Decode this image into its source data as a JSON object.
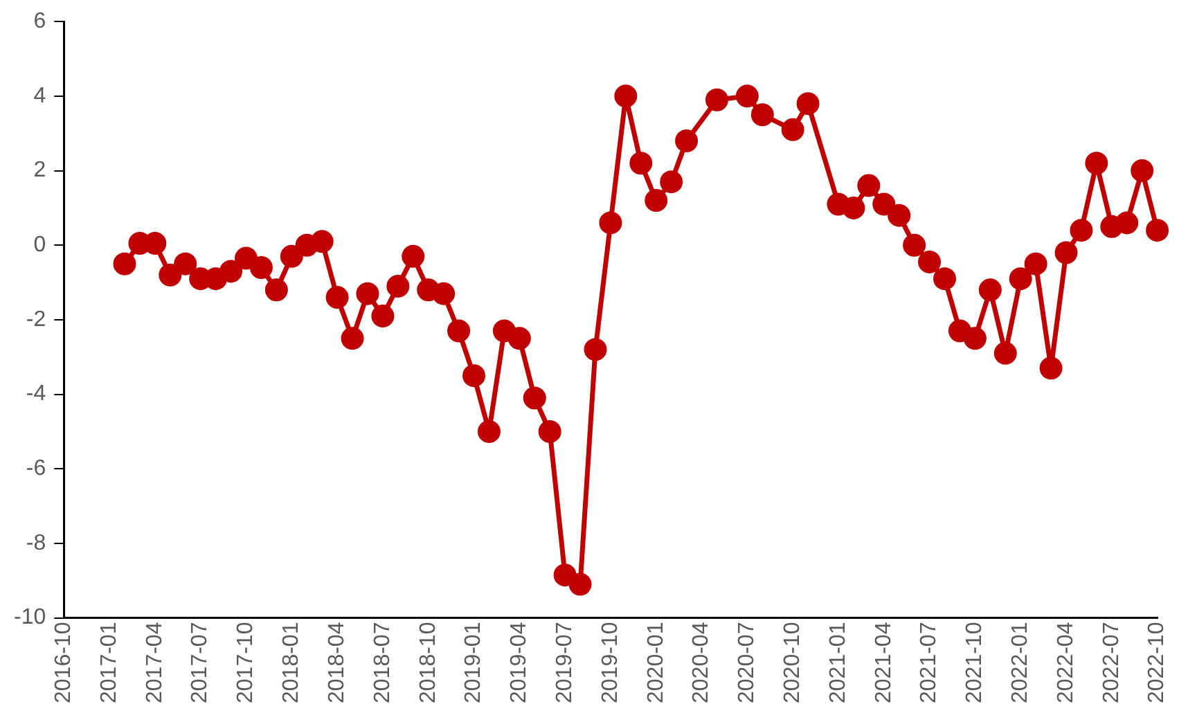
{
  "chart_data": {
    "type": "line",
    "x": [
      "2017-02",
      "2017-03",
      "2017-04",
      "2017-05",
      "2017-06",
      "2017-07",
      "2017-08",
      "2017-09",
      "2017-10",
      "2017-11",
      "2017-12",
      "2018-01",
      "2018-02",
      "2018-03",
      "2018-04",
      "2018-05",
      "2018-06",
      "2018-07",
      "2018-08",
      "2018-09",
      "2018-10",
      "2018-11",
      "2018-12",
      "2019-01",
      "2019-02",
      "2019-03",
      "2019-04",
      "2019-05",
      "2019-06",
      "2019-07",
      "2019-08",
      "2019-09",
      "2019-10",
      "2019-11",
      "2019-12",
      "2020-01",
      "2020-02",
      "2020-03",
      "2020-05",
      "2020-07",
      "2020-08",
      "2020-10",
      "2020-11",
      "2021-01",
      "2021-02",
      "2021-03",
      "2021-04",
      "2021-05",
      "2021-06",
      "2021-07",
      "2021-08",
      "2021-09",
      "2021-10",
      "2021-11",
      "2021-12",
      "2022-01",
      "2022-02",
      "2022-03",
      "2022-04",
      "2022-05",
      "2022-06",
      "2022-07",
      "2022-08",
      "2022-09",
      "2022-10"
    ],
    "series": [
      {
        "color": "#c00000",
        "values": [
          -0.5,
          0.05,
          0.05,
          -0.8,
          -0.5,
          -0.9,
          -0.9,
          -0.7,
          -0.35,
          -0.6,
          -1.2,
          -0.3,
          0.0,
          0.1,
          -1.4,
          -2.5,
          -1.3,
          -1.9,
          -1.1,
          -0.3,
          -1.2,
          -1.3,
          -2.3,
          -3.5,
          -5.0,
          -2.3,
          -2.5,
          -4.1,
          -5.0,
          -8.85,
          -9.1,
          -2.8,
          0.6,
          4.0,
          2.2,
          1.2,
          1.7,
          2.8,
          3.9,
          4.0,
          3.5,
          3.1,
          3.8,
          1.1,
          1.0,
          1.6,
          1.1,
          0.8,
          0.0,
          -0.45,
          -0.9,
          -2.3,
          -2.5,
          -1.2,
          -2.9,
          -0.9,
          -0.5,
          -3.3,
          -0.2,
          0.4,
          2.2,
          0.5,
          0.6,
          2.0,
          0.4
        ]
      }
    ],
    "xlim": [
      "2016-10",
      "2022-10"
    ],
    "xticks": [
      "2016-10",
      "2017-01",
      "2017-04",
      "2017-07",
      "2017-10",
      "2018-01",
      "2018-04",
      "2018-07",
      "2018-10",
      "2019-01",
      "2019-04",
      "2019-07",
      "2019-10",
      "2020-01",
      "2020-04",
      "2020-07",
      "2020-10",
      "2021-01",
      "2021-04",
      "2021-07",
      "2021-10",
      "2022-01",
      "2022-04",
      "2022-07",
      "2022-10"
    ],
    "ylim": [
      -10,
      6
    ],
    "yticks": [
      -10,
      -8,
      -6,
      -4,
      -2,
      0,
      2,
      4,
      6
    ],
    "grid": false,
    "legend": false,
    "marker": "circle",
    "line_style": "solid"
  }
}
